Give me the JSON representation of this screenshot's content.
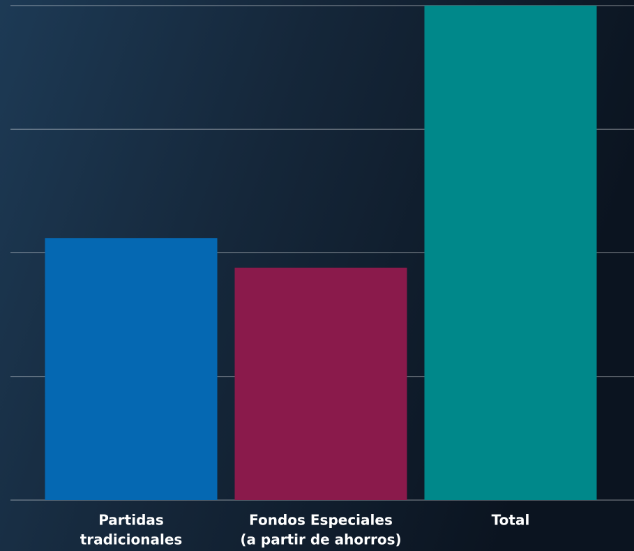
{
  "chart_data": {
    "type": "bar",
    "categories": [
      [
        "Partidas",
        "tradicionales"
      ],
      [
        "Fondos Especiales",
        "(a partir de ahorros)"
      ],
      [
        "Total"
      ]
    ],
    "values": [
      2.12,
      1.88,
      4.0
    ],
    "colors": [
      "#0568b2",
      "#8a1a4b",
      "#00888a"
    ],
    "ylim": [
      0,
      4
    ],
    "yticks": [
      0,
      1,
      2,
      3,
      4
    ],
    "grid": true
  }
}
